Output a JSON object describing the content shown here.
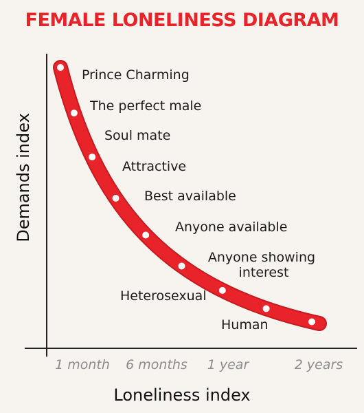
{
  "chart_data": {
    "type": "line",
    "title": "FEMALE LONELINESS DIAGRAM",
    "xlabel": "Loneliness index",
    "ylabel": "Demands index",
    "x_ticks": [
      "1 month",
      "6 months",
      "1 year",
      "2 years"
    ],
    "points": [
      {
        "label": "Prince Charming"
      },
      {
        "label": "The perfect male"
      },
      {
        "label": "Soul mate"
      },
      {
        "label": "Attractive"
      },
      {
        "label": "Best available"
      },
      {
        "label": "Anyone available"
      },
      {
        "label": "Anyone showing interest",
        "lines": [
          "Anyone showing",
          "interest"
        ]
      },
      {
        "label": "Heterosexual"
      },
      {
        "label": "Human"
      }
    ],
    "colors": {
      "curve": "#e8232a",
      "title": "#e8232a",
      "axis": "#222222"
    }
  }
}
